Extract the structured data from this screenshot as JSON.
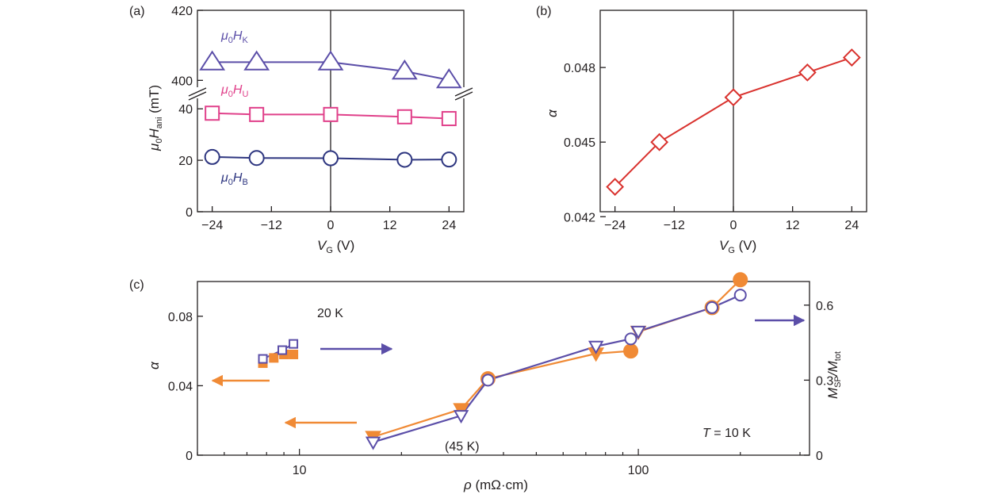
{
  "chart_data": [
    {
      "panel": "(a)",
      "type": "line",
      "xlabel_main": "V",
      "xlabel_sub": "G",
      "xlabel_unit": " (V)",
      "ylabel_parts": [
        "μ",
        "0",
        "H",
        "ani",
        " (mT)"
      ],
      "xlim": [
        -27,
        27
      ],
      "x_ticks": [
        -24,
        -12,
        0,
        12,
        24
      ],
      "x_tick_labels": [
        "−24",
        "−12",
        "0",
        "12",
        "24"
      ],
      "y_broken_axis": true,
      "ylim_lower": [
        0,
        45
      ],
      "y_ticks_lower": [
        0,
        20,
        40
      ],
      "y_tick_labels_lower": [
        "0",
        "20",
        "40"
      ],
      "ylim_upper": [
        396,
        420
      ],
      "y_ticks_upper": [
        400,
        420
      ],
      "y_tick_labels_upper": [
        "400",
        "420"
      ],
      "vline_at_x": 0,
      "x": [
        -24,
        -15,
        0,
        15,
        24
      ],
      "series": [
        {
          "name": "μ0HK",
          "label_main": "μ",
          "label_sub0": "0",
          "label_H": "H",
          "label_sub": "K",
          "color": "#5b4ea8",
          "marker": "triangle",
          "values": [
            405.2,
            405.2,
            405.2,
            402.6,
            400.1
          ],
          "axis": "upper"
        },
        {
          "name": "μ0HU",
          "label_main": "μ",
          "label_sub0": "0",
          "label_H": "H",
          "label_sub": "U",
          "color": "#e0408a",
          "marker": "square",
          "values": [
            38.3,
            37.8,
            37.8,
            36.9,
            36.2
          ],
          "axis": "lower"
        },
        {
          "name": "μ0HB",
          "label_main": "μ",
          "label_sub0": "0",
          "label_H": "H",
          "label_sub": "B",
          "color": "#2e3680",
          "marker": "circle",
          "values": [
            21.3,
            20.9,
            20.8,
            20.2,
            20.3
          ],
          "axis": "lower"
        }
      ]
    },
    {
      "panel": "(b)",
      "type": "line",
      "xlabel_main": "V",
      "xlabel_sub": "G",
      "xlabel_unit": " (V)",
      "ylabel": "α",
      "xlim": [
        -27,
        27
      ],
      "x_ticks": [
        -24,
        -12,
        0,
        12,
        24
      ],
      "x_tick_labels": [
        "−24",
        "−12",
        "0",
        "12",
        "24"
      ],
      "ylim": [
        0.0422,
        0.0503
      ],
      "y_ticks": [
        0.042,
        0.045,
        0.048
      ],
      "y_tick_labels": [
        "0.042",
        "0.045",
        "0.048"
      ],
      "vline_at_x": 0,
      "series": [
        {
          "name": "α",
          "color": "#d9322e",
          "marker": "diamond",
          "x": [
            -24,
            -15,
            0,
            15,
            24
          ],
          "values": [
            0.0432,
            0.045,
            0.0468,
            0.0478,
            0.0484
          ]
        }
      ]
    },
    {
      "panel": "(c)",
      "type": "scatter",
      "xlabel_main": "ρ",
      "xlabel_unit": " (mΩ·cm)",
      "x_scale": "log",
      "xlim": [
        5,
        320
      ],
      "x_ticks": [
        10,
        100
      ],
      "x_tick_labels": [
        "10",
        "100"
      ],
      "ylabel_left": "α",
      "ylim_left": [
        0,
        0.1
      ],
      "y_ticks_left": [
        0,
        0.04,
        0.08
      ],
      "y_tick_labels_left": [
        "0",
        "0.04",
        "0.08"
      ],
      "ylabel_right_parts": [
        "M",
        "SP",
        "/M",
        "tot"
      ],
      "ylim_right": [
        0,
        0.6944
      ],
      "y_ticks_right": [
        0,
        0.3,
        0.6
      ],
      "y_tick_labels_right": [
        "0",
        "0.3",
        "0.6"
      ],
      "annotations": {
        "temp_20k": "20 K",
        "temp_45k": "(45 K)",
        "t_label_main": "T",
        "t_label_rest": " = 10 K"
      },
      "series": [
        {
          "name": "α (T = 10 K)",
          "color": "#f08a35",
          "axis": "left",
          "marker": "filled-circle",
          "x": [
            36,
            95,
            165,
            200
          ],
          "values": [
            0.044,
            0.06,
            0.085,
            0.101
          ]
        },
        {
          "name": "α (T = 10 K, inverted triangles)",
          "color": "#f08a35",
          "axis": "left",
          "marker": "filled-triangle-down",
          "x": [
            16.5,
            30,
            75,
            100
          ],
          "values": [
            0.0105,
            0.0265,
            0.0585,
            0.071
          ]
        },
        {
          "name": "MSP/Mtot (T = 10 K)",
          "color": "#5b4ea8",
          "axis": "right",
          "marker": "open-circle",
          "x": [
            36,
            95,
            165,
            200
          ],
          "values": [
            0.3,
            0.465,
            0.59,
            0.64
          ]
        },
        {
          "name": "MSP/Mtot (T = 10 K, inverted triangles)",
          "color": "#5b4ea8",
          "axis": "right",
          "marker": "open-triangle-down",
          "x": [
            16.5,
            30,
            75,
            100
          ],
          "values": [
            0.052,
            0.158,
            0.435,
            0.495
          ]
        },
        {
          "name": "α (20 K)",
          "color": "#f08a35",
          "axis": "left",
          "marker": "filled-square",
          "x": [
            7.8,
            8.4,
            9.0,
            9.6
          ],
          "values": [
            0.053,
            0.056,
            0.058,
            0.058
          ]
        },
        {
          "name": "MSP/Mtot (20 K)",
          "color": "#5b4ea8",
          "axis": "right",
          "marker": "open-square",
          "x": [
            7.8,
            8.9,
            9.6
          ],
          "values": [
            0.385,
            0.42,
            0.445
          ]
        }
      ]
    }
  ]
}
